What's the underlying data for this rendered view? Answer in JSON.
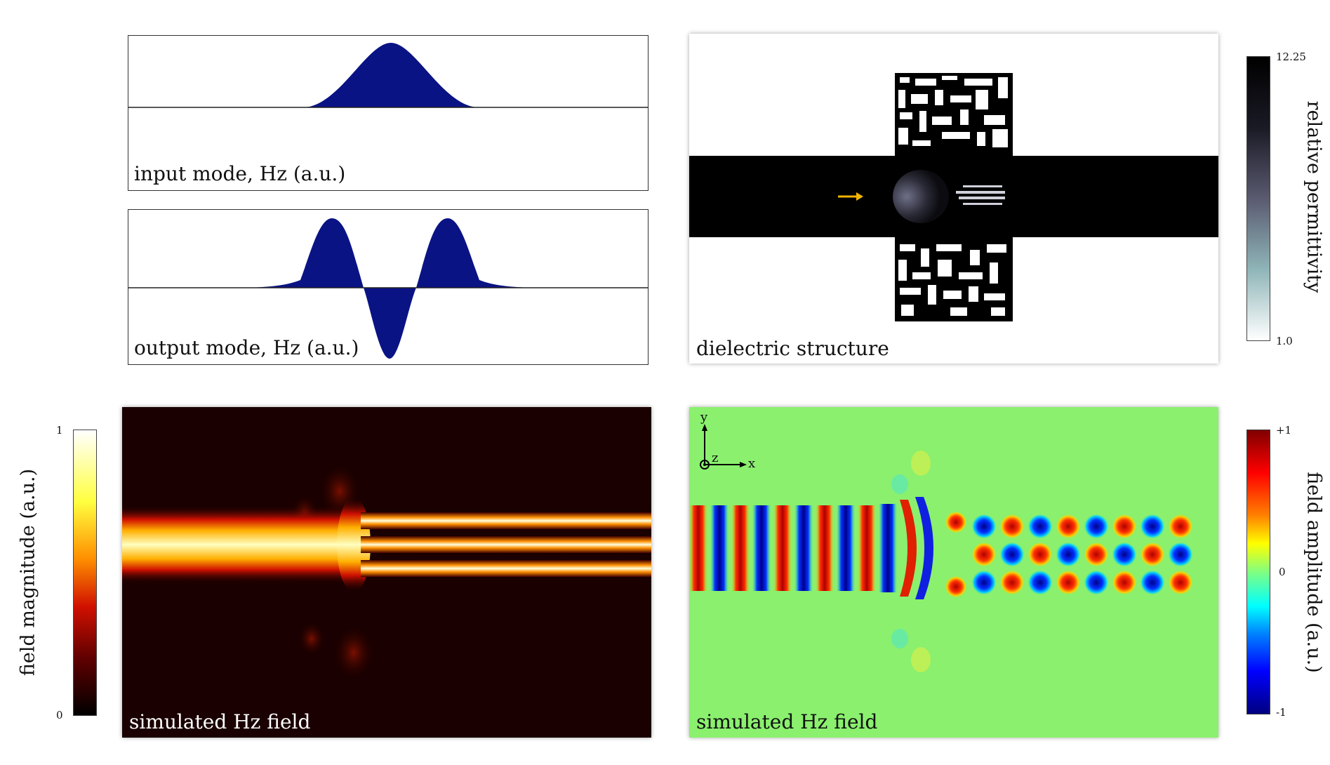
{
  "panels": {
    "input_mode": {
      "label": "input mode, Hz (a.u.)"
    },
    "output_mode": {
      "label": "output mode, Hz (a.u.)"
    },
    "dielectric": {
      "label": "dielectric structure"
    },
    "magnitude": {
      "label": "simulated Hz field"
    },
    "amplitude": {
      "label": "simulated Hz field"
    }
  },
  "colorbars": {
    "permittivity": {
      "title": "relative permittivity",
      "max": "12.25",
      "min": "1.0"
    },
    "magnitude": {
      "title": "field magnitude (a.u.)",
      "max": "1",
      "min": "0"
    },
    "amplitude": {
      "title": "field amplitude (a.u.)",
      "max": "+1",
      "mid": "0",
      "min": "-1"
    }
  },
  "axes": {
    "y": "y",
    "z": "z",
    "x": "x"
  },
  "colors": {
    "mode_fill": "#0a1384",
    "arrow": "#f2b400",
    "field_bg": "#8af06e",
    "field_red": "#d01010",
    "field_blue": "#1010e0",
    "magnitude_bg": "#1a0000"
  }
}
